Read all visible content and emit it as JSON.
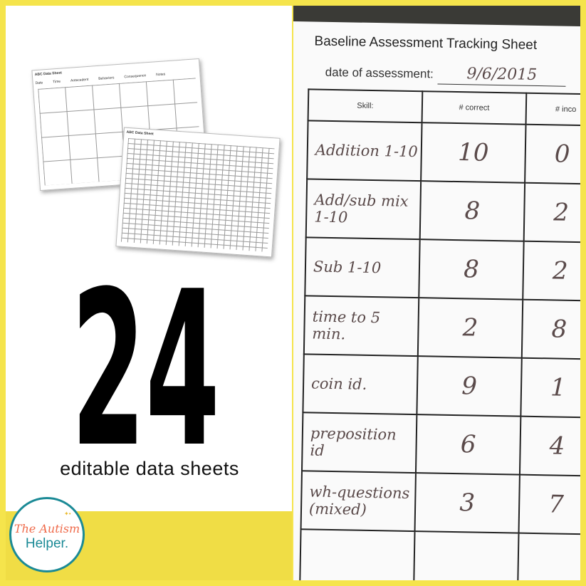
{
  "thumbnails": {
    "sheet1_title": "ABC Data Sheet",
    "sheet1_columns": [
      "Date",
      "Time",
      "Antecedent",
      "Behaviors",
      "Consequence",
      "Notes"
    ],
    "sheet2_title": "ABC Data Sheet"
  },
  "headline": {
    "number": "24",
    "subtitle": "editable data sheets"
  },
  "logo": {
    "line1": "The Autism",
    "line2": "Helper."
  },
  "photo": {
    "title": "Baseline Assessment Tracking Sheet",
    "date_label": "date of assessment:",
    "date_value": "9/6/2015",
    "headers": [
      "Skill:",
      "# correct",
      "# inco"
    ],
    "rows": [
      {
        "skill": "Addition 1-10",
        "correct": "10",
        "incorrect": "0"
      },
      {
        "skill": "Add/sub mix 1-10",
        "correct": "8",
        "incorrect": "2"
      },
      {
        "skill": "Sub 1-10",
        "correct": "8",
        "incorrect": "2"
      },
      {
        "skill": "time to 5 min.",
        "correct": "2",
        "incorrect": "8"
      },
      {
        "skill": "coin id.",
        "correct": "9",
        "incorrect": "1"
      },
      {
        "skill": "preposition id",
        "correct": "6",
        "incorrect": "4"
      },
      {
        "skill": "wh-questions (mixed)",
        "correct": "3",
        "incorrect": "7"
      }
    ]
  },
  "colors": {
    "frame": "#f5e44c",
    "logo_teal": "#1b8a96",
    "logo_orange": "#ef6a4a"
  }
}
